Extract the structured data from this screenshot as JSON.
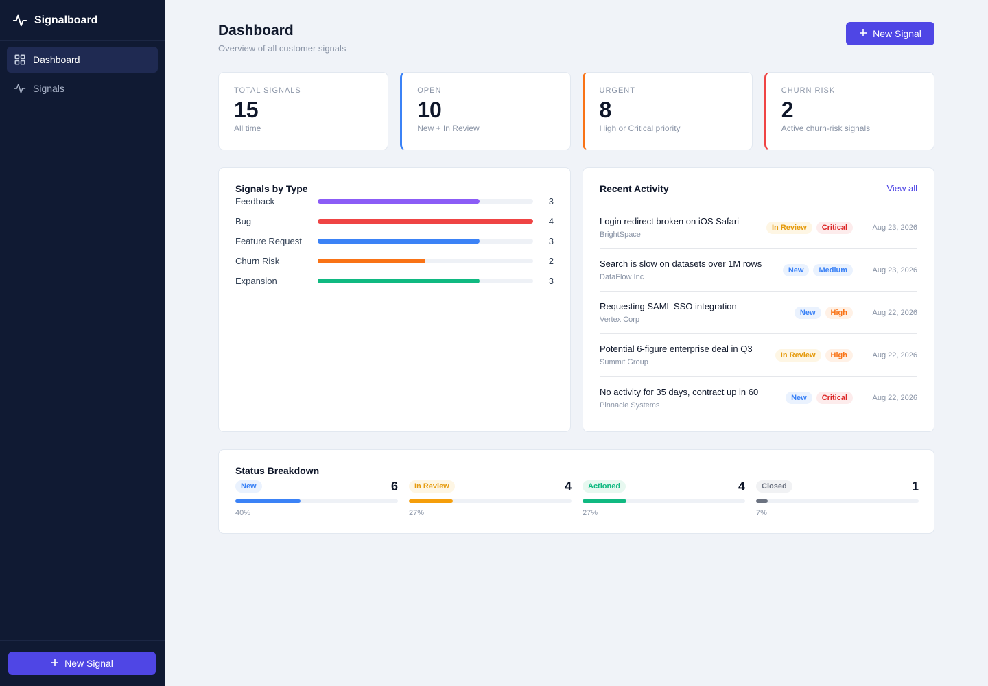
{
  "app": {
    "name": "Signalboard"
  },
  "sidebar": {
    "items": [
      {
        "label": "Dashboard",
        "icon": "dashboard-grid-icon",
        "active": true
      },
      {
        "label": "Signals",
        "icon": "pulse-icon",
        "active": false
      }
    ],
    "footer_button": "New Signal"
  },
  "header": {
    "title": "Dashboard",
    "subtitle": "Overview of all customer signals",
    "button": "New Signal"
  },
  "stats": [
    {
      "label": "TOTAL SIGNALS",
      "value": "15",
      "sub": "All time",
      "accent": "#e2e8f0"
    },
    {
      "label": "OPEN",
      "value": "10",
      "sub": "New + In Review",
      "accent": "#3b82f6"
    },
    {
      "label": "URGENT",
      "value": "8",
      "sub": "High or Critical priority",
      "accent": "#f97316"
    },
    {
      "label": "CHURN RISK",
      "value": "2",
      "sub": "Active churn-risk signals",
      "accent": "#ef4444"
    }
  ],
  "types": {
    "title": "Signals by Type",
    "max": 4,
    "rows": [
      {
        "label": "Feedback",
        "value": 3,
        "color": "#8b5cf6"
      },
      {
        "label": "Bug",
        "value": 4,
        "color": "#ef4444"
      },
      {
        "label": "Feature Request",
        "value": 3,
        "color": "#3b82f6"
      },
      {
        "label": "Churn Risk",
        "value": 2,
        "color": "#f97316"
      },
      {
        "label": "Expansion",
        "value": 3,
        "color": "#10b981"
      }
    ]
  },
  "activity": {
    "title": "Recent Activity",
    "view_all": "View all",
    "items": [
      {
        "title": "Login redirect broken on iOS Safari",
        "company": "BrightSpace",
        "status": "In Review",
        "priority": "Critical",
        "date": "Aug 23, 2026"
      },
      {
        "title": "Search is slow on datasets over 1M rows",
        "company": "DataFlow Inc",
        "status": "New",
        "priority": "Medium",
        "date": "Aug 23, 2026"
      },
      {
        "title": "Requesting SAML SSO integration",
        "company": "Vertex Corp",
        "status": "New",
        "priority": "High",
        "date": "Aug 22, 2026"
      },
      {
        "title": "Potential 6-figure enterprise deal in Q3",
        "company": "Summit Group",
        "status": "In Review",
        "priority": "High",
        "date": "Aug 22, 2026"
      },
      {
        "title": "No activity for 35 days, contract up in 60",
        "company": "Pinnacle Systems",
        "status": "New",
        "priority": "Critical",
        "date": "Aug 22, 2026"
      }
    ]
  },
  "status_breakdown": {
    "title": "Status Breakdown",
    "items": [
      {
        "label": "New",
        "count": "6",
        "pct": "40%",
        "fraction": 0.4,
        "color": "#3b82f6"
      },
      {
        "label": "In Review",
        "count": "4",
        "pct": "27%",
        "fraction": 0.27,
        "color": "#f59e0b"
      },
      {
        "label": "Actioned",
        "count": "4",
        "pct": "27%",
        "fraction": 0.27,
        "color": "#10b981"
      },
      {
        "label": "Closed",
        "count": "1",
        "pct": "7%",
        "fraction": 0.07,
        "color": "#6b7280"
      }
    ]
  }
}
